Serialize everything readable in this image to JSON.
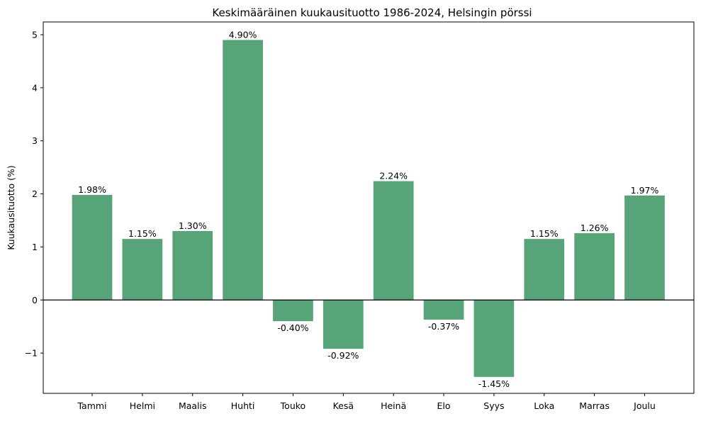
{
  "chart_data": {
    "type": "bar",
    "title": "Keskimääräinen kuukausituotto 1986-2024, Helsingin pörssi",
    "xlabel": "",
    "ylabel": "Kuukausituotto (%)",
    "categories": [
      "Tammi",
      "Helmi",
      "Maalis",
      "Huhti",
      "Touko",
      "Kesä",
      "Heinä",
      "Elo",
      "Syys",
      "Loka",
      "Marras",
      "Joulu"
    ],
    "values": [
      1.98,
      1.15,
      1.3,
      4.9,
      -0.4,
      -0.92,
      2.24,
      -0.37,
      -1.45,
      1.15,
      1.26,
      1.97
    ],
    "data_labels": [
      "1.98%",
      "1.15%",
      "1.30%",
      "4.90%",
      "-0.40%",
      "-0.92%",
      "2.24%",
      "-0.37%",
      "-1.45%",
      "1.15%",
      "1.26%",
      "1.97%"
    ],
    "ylim": [
      -1.76,
      5.24
    ],
    "yticks": [
      -1,
      0,
      1,
      2,
      3,
      4,
      5
    ],
    "ytick_labels": [
      "−1",
      "0",
      "1",
      "2",
      "3",
      "4",
      "5"
    ],
    "zero_line": true,
    "grid": false,
    "legend": "none",
    "bar_color": "#57a479"
  }
}
